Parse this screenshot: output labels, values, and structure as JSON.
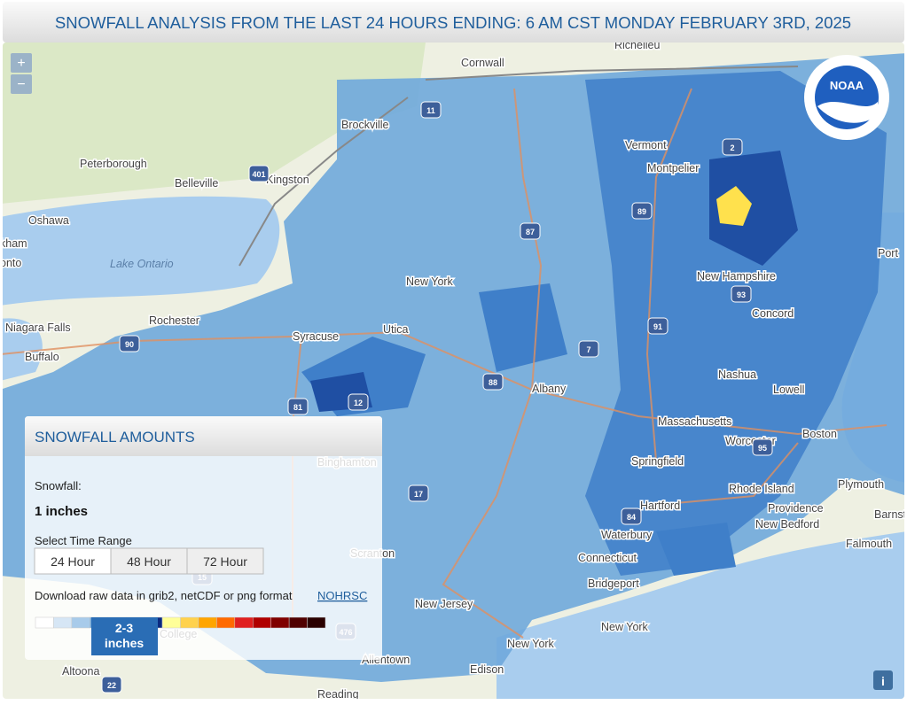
{
  "header": {
    "title": "SNOWFALL ANALYSIS FROM THE LAST 24 HOURS ENDING: 6 AM CST MONDAY FEBRUARY 3RD, 2025"
  },
  "zoom": {
    "in": "+",
    "out": "−"
  },
  "logo": "NOAA",
  "info": "i",
  "map_labels": [
    "Richelieu",
    "Cornwall",
    "Brockville",
    "Peterborough",
    "Belleville",
    "Kingston",
    "Oshawa",
    "kham",
    "onto",
    "Lake Ontario",
    "Vermont",
    "Montpelier",
    "New York",
    "New Hampshire",
    "Port",
    "Concord",
    "Rochester",
    "Niagara Falls",
    "Buffalo",
    "Syracuse",
    "Utica",
    "Albany",
    "Nashua",
    "Lowell",
    "Massachusetts",
    "Worcester",
    "Boston",
    "Springfield",
    "Binghamton",
    "Hartford",
    "Rhode Island",
    "Providence",
    "Plymouth",
    "Barnst",
    "New Bedford",
    "Falmouth",
    "Waterbury",
    "Connecticut",
    "Bridgeport",
    "Scranton",
    "New Jersey",
    "New York",
    "College",
    "Allentown",
    "Edison",
    "New York",
    "Altoona",
    "Reading"
  ],
  "shields": [
    "11",
    "401",
    "87",
    "89",
    "2",
    "90",
    "88",
    "81",
    "12",
    "7",
    "91",
    "93",
    "84",
    "15",
    "17",
    "476",
    "22",
    "95"
  ],
  "panel": {
    "title": "SNOWFALL AMOUNTS",
    "snowfall_label": "Snowfall:",
    "snowfall_value": "1 inches",
    "range_label": "Select Time Range",
    "range_buttons": [
      "24 Hour",
      "48 Hour",
      "72 Hour"
    ],
    "download_text": "Download raw data in grib2, netCDF or png format",
    "download_link": "NOHRSC",
    "legend": {
      "colors": [
        "#ffffff",
        "#d6e6f5",
        "#a8cbea",
        "#6fa8dc",
        "#3f7fc9",
        "#1f4fa3",
        "#0a2a80",
        "#ffff99",
        "#ffd24d",
        "#ffa500",
        "#ff6a00",
        "#e02020",
        "#b00000",
        "#800000",
        "#500000",
        "#2a0000"
      ],
      "tooltip": [
        "2-3",
        "inches"
      ]
    }
  }
}
